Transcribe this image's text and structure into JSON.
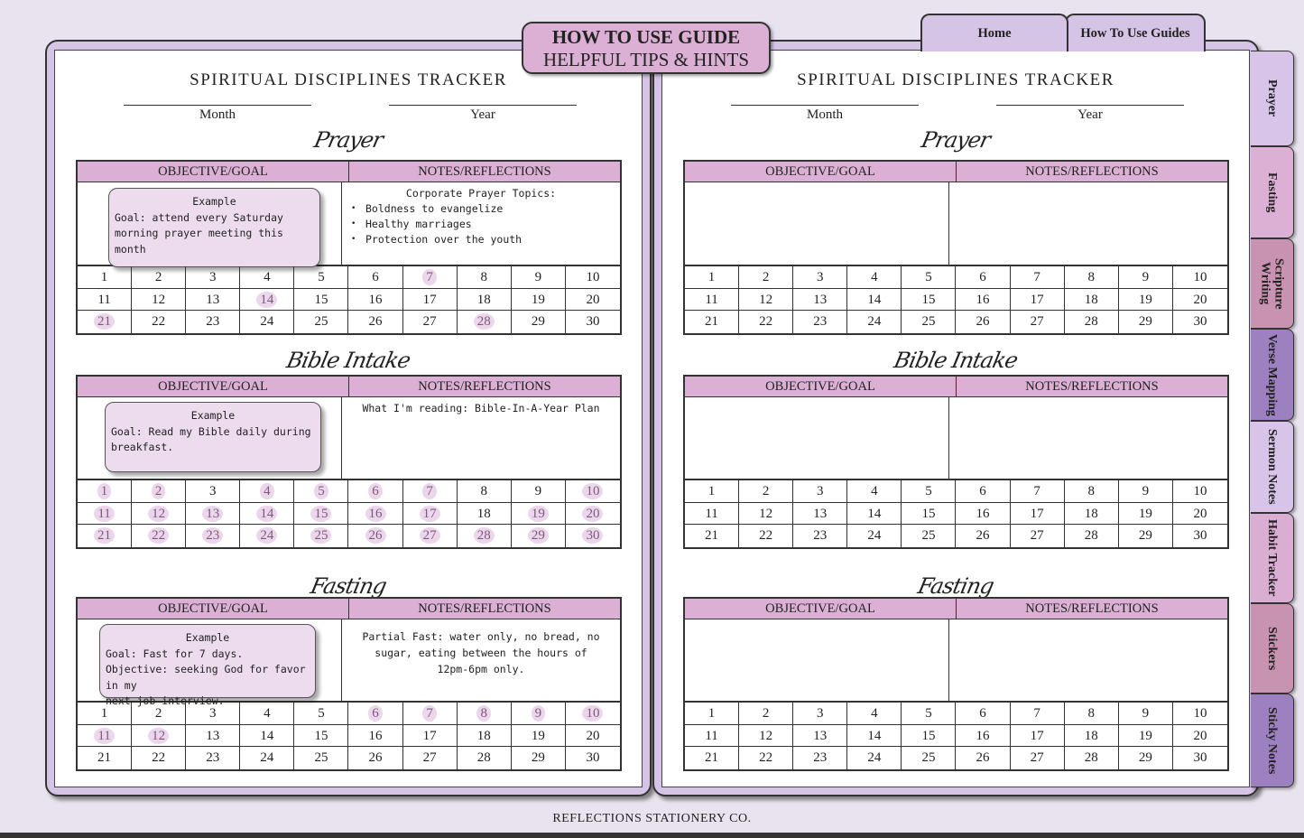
{
  "header": {
    "title": "HOW TO USE GUIDE",
    "subtitle": "HELPFUL TIPS & HINTS"
  },
  "top_tabs": [
    {
      "label": "Home"
    },
    {
      "label": "How To Use Guides"
    }
  ],
  "side_tabs": [
    {
      "label": "Prayer",
      "color": "#d8c4e8"
    },
    {
      "label": "Fasting",
      "color": "#dcb0d4"
    },
    {
      "label": "Scripture Writing",
      "color": "#c893b0"
    },
    {
      "label": "Verse Mapping",
      "color": "#9d80c0"
    },
    {
      "label": "Sermon Notes",
      "color": "#d8c4e8"
    },
    {
      "label": "Habit Tracker",
      "color": "#d9aed2"
    },
    {
      "label": "Stickers",
      "color": "#c893b0"
    },
    {
      "label": "Sticky Notes",
      "color": "#9d80c0"
    }
  ],
  "days": [
    1,
    2,
    3,
    4,
    5,
    6,
    7,
    8,
    9,
    10,
    11,
    12,
    13,
    14,
    15,
    16,
    17,
    18,
    19,
    20,
    21,
    22,
    23,
    24,
    25,
    26,
    27,
    28,
    29,
    30
  ],
  "pages": [
    {
      "title": "SPIRITUAL DISCIPLINES TRACKER",
      "month_label": "Month",
      "year_label": "Year",
      "sections": [
        {
          "heading": "Prayer",
          "objective_header": "OBJECTIVE/GOAL",
          "notes_header": "NOTES/REFLECTIONS",
          "example": [
            "Example",
            "Goal: attend every Saturday",
            "morning prayer meeting this month"
          ],
          "notes_title": "Corporate Prayer Topics:",
          "notes_bullets": [
            "Boldness to evangelize",
            "Healthy marriages",
            "Protection over the youth"
          ],
          "marked": [
            7,
            14,
            21,
            28
          ]
        },
        {
          "heading": "Bible Intake",
          "objective_header": "OBJECTIVE/GOAL",
          "notes_header": "NOTES/REFLECTIONS",
          "example": [
            "Example",
            "Goal: Read my Bible daily during",
            "breakfast."
          ],
          "notes_title": "What I'm reading: Bible-In-A-Year Plan",
          "notes_bullets": [],
          "marked": [
            1,
            2,
            4,
            5,
            6,
            7,
            10,
            11,
            12,
            13,
            14,
            15,
            16,
            17,
            19,
            20,
            21,
            22,
            23,
            24,
            25,
            26,
            27,
            28,
            29,
            30
          ]
        },
        {
          "heading": "Fasting",
          "objective_header": "OBJECTIVE/GOAL",
          "notes_header": "NOTES/REFLECTIONS",
          "example": [
            "Example",
            "Goal: Fast for 7 days.",
            "Objective: seeking God for favor in my",
            "next job interview."
          ],
          "notes_title": "Partial Fast: water only, no bread, no sugar, eating between the hours of 12pm-6pm only.",
          "notes_bullets": [],
          "marked": [
            6,
            7,
            8,
            9,
            10,
            11,
            12
          ]
        }
      ]
    },
    {
      "title": "SPIRITUAL DISCIPLINES TRACKER",
      "month_label": "Month",
      "year_label": "Year",
      "sections": [
        {
          "heading": "Prayer",
          "objective_header": "OBJECTIVE/GOAL",
          "notes_header": "NOTES/REFLECTIONS",
          "example": [],
          "notes_title": "",
          "notes_bullets": [],
          "marked": []
        },
        {
          "heading": "Bible Intake",
          "objective_header": "OBJECTIVE/GOAL",
          "notes_header": "NOTES/REFLECTIONS",
          "example": [],
          "notes_title": "",
          "notes_bullets": [],
          "marked": []
        },
        {
          "heading": "Fasting",
          "objective_header": "OBJECTIVE/GOAL",
          "notes_header": "NOTES/REFLECTIONS",
          "example": [],
          "notes_title": "",
          "notes_bullets": [],
          "marked": []
        }
      ]
    }
  ],
  "footer": "REFLECTIONS STATIONERY CO."
}
